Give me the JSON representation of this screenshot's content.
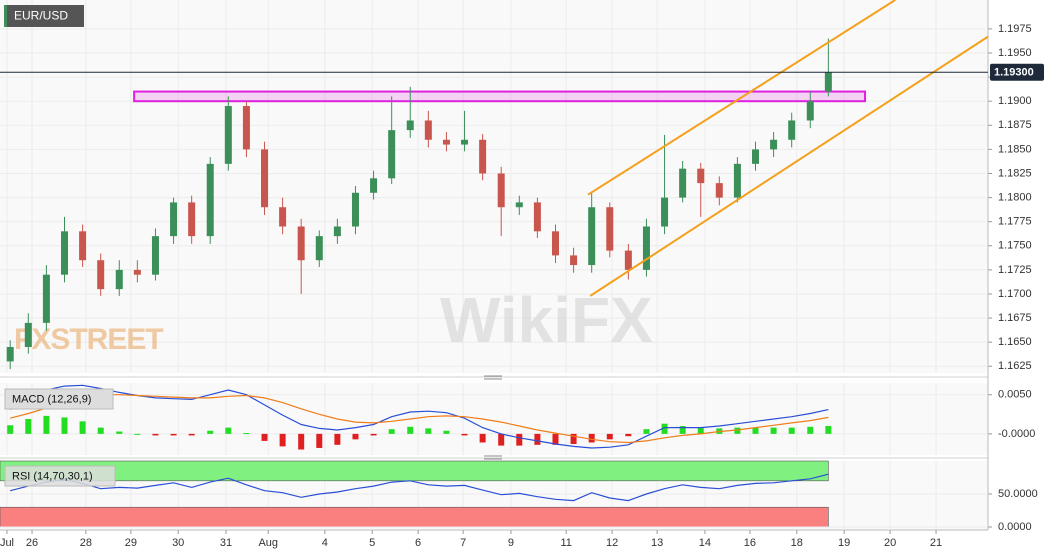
{
  "chart_data": [
    {
      "type": "candlestick",
      "title": "EUR/USD",
      "x": [
        -0.47,
        -0.08,
        0.31,
        0.7,
        1.09,
        1.48,
        1.88,
        2.27,
        2.66,
        3.05,
        3.44,
        3.84,
        4.23,
        4.62,
        5.01,
        5.4,
        5.8,
        6.19,
        6.58,
        6.97,
        7.36,
        7.75,
        8.15,
        8.54,
        8.93,
        9.32,
        9.71,
        10.11,
        10.5,
        10.89,
        11.28,
        11.67,
        12.06,
        12.45,
        12.85,
        13.24,
        13.63,
        14.02,
        14.41,
        14.81,
        15.2,
        15.59,
        15.98,
        16.37,
        16.77,
        17.16
      ],
      "open": [
        1.163,
        1.1645,
        1.167,
        1.172,
        1.1765,
        1.1735,
        1.1705,
        1.1725,
        1.172,
        1.176,
        1.1795,
        1.176,
        1.1835,
        1.1895,
        1.185,
        1.179,
        1.177,
        1.1735,
        1.176,
        1.177,
        1.1805,
        1.182,
        1.187,
        1.188,
        1.186,
        1.1855,
        1.186,
        1.1825,
        1.179,
        1.1795,
        1.1765,
        1.174,
        1.173,
        1.179,
        1.1745,
        1.1725,
        1.177,
        1.18,
        1.183,
        1.1815,
        1.18,
        1.1835,
        1.185,
        1.186,
        1.188,
        1.191
      ],
      "high": [
        1.1652,
        1.168,
        1.173,
        1.178,
        1.1772,
        1.1742,
        1.1735,
        1.1735,
        1.1768,
        1.18,
        1.1802,
        1.1842,
        1.1905,
        1.19,
        1.1858,
        1.18,
        1.1778,
        1.1766,
        1.1778,
        1.1812,
        1.1828,
        1.1905,
        1.1915,
        1.189,
        1.1868,
        1.189,
        1.1866,
        1.1832,
        1.1802,
        1.18,
        1.1772,
        1.1748,
        1.1805,
        1.1795,
        1.1752,
        1.1778,
        1.1865,
        1.1838,
        1.1836,
        1.1822,
        1.1842,
        1.1858,
        1.1868,
        1.1888,
        1.191,
        1.1965
      ],
      "low": [
        1.1622,
        1.1638,
        1.1662,
        1.1712,
        1.1728,
        1.1698,
        1.1698,
        1.1712,
        1.1714,
        1.1752,
        1.1752,
        1.1752,
        1.1828,
        1.1842,
        1.1782,
        1.1762,
        1.17,
        1.1728,
        1.1752,
        1.1762,
        1.1798,
        1.1814,
        1.1862,
        1.1852,
        1.1848,
        1.1848,
        1.1818,
        1.176,
        1.1782,
        1.1758,
        1.1732,
        1.1722,
        1.1722,
        1.1738,
        1.1715,
        1.1718,
        1.1762,
        1.1795,
        1.178,
        1.1792,
        1.1795,
        1.1828,
        1.1842,
        1.1852,
        1.1872,
        1.1905
      ],
      "close": [
        1.1645,
        1.167,
        1.172,
        1.1765,
        1.1735,
        1.1705,
        1.1725,
        1.172,
        1.176,
        1.1795,
        1.176,
        1.1835,
        1.1895,
        1.185,
        1.179,
        1.177,
        1.1735,
        1.176,
        1.177,
        1.1805,
        1.182,
        1.187,
        1.188,
        1.186,
        1.1855,
        1.186,
        1.1825,
        1.179,
        1.1795,
        1.1765,
        1.174,
        1.173,
        1.179,
        1.1745,
        1.1725,
        1.177,
        1.18,
        1.183,
        1.1815,
        1.18,
        1.1835,
        1.185,
        1.186,
        1.188,
        1.19,
        1.193
      ],
      "up_color": "#3d8f5a",
      "down_color": "#c9564d",
      "xlim": [
        -0.69,
        20.6
      ],
      "xticks": [
        {
          "value": -0.54,
          "label": "Jul"
        },
        {
          "value": 0,
          "label": "26"
        },
        {
          "value": 1.16,
          "label": "28"
        },
        {
          "value": 2.13,
          "label": "29"
        },
        {
          "value": 3.15,
          "label": "30"
        },
        {
          "value": 4.18,
          "label": "31"
        },
        {
          "value": 5.09,
          "label": "Aug"
        },
        {
          "value": 6.31,
          "label": "4"
        },
        {
          "value": 7.33,
          "label": "5"
        },
        {
          "value": 8.32,
          "label": "6"
        },
        {
          "value": 9.29,
          "label": "7"
        },
        {
          "value": 10.32,
          "label": "9"
        },
        {
          "value": 11.51,
          "label": "11"
        },
        {
          "value": 12.5,
          "label": "12"
        },
        {
          "value": 13.47,
          "label": "13"
        },
        {
          "value": 14.5,
          "label": "14"
        },
        {
          "value": 15.47,
          "label": "16"
        },
        {
          "value": 16.48,
          "label": "18"
        },
        {
          "value": 17.5,
          "label": "19"
        },
        {
          "value": 18.49,
          "label": "20"
        },
        {
          "value": 19.48,
          "label": "21"
        }
      ],
      "ylim": [
        1.1618,
        1.2005
      ],
      "yticks": [
        {
          "value": 1.1625,
          "label": "1.1625"
        },
        {
          "value": 1.165,
          "label": "1.1650"
        },
        {
          "value": 1.1675,
          "label": "1.1675"
        },
        {
          "value": 1.17,
          "label": "1.1700"
        },
        {
          "value": 1.1725,
          "label": "1.1725"
        },
        {
          "value": 1.175,
          "label": "1.1750"
        },
        {
          "value": 1.1775,
          "label": "1.1775"
        },
        {
          "value": 1.18,
          "label": "1.1800"
        },
        {
          "value": 1.1825,
          "label": "1.1825"
        },
        {
          "value": 1.185,
          "label": "1.1850"
        },
        {
          "value": 1.1875,
          "label": "1.1875"
        },
        {
          "value": 1.19,
          "label": "1.1900"
        },
        {
          "value": 1.1925,
          "label": "1.1925"
        },
        {
          "value": 1.195,
          "label": "1.1950"
        },
        {
          "value": 1.1975,
          "label": "1.1975"
        }
      ],
      "current_price": {
        "value": 1.193,
        "label": "1.19300"
      },
      "zone": {
        "x": [
          2.2,
          17.95
        ],
        "y": [
          1.19,
          1.191
        ],
        "color": "#e020e0"
      },
      "channel": {
        "color": "#f5a01a",
        "lines": [
          {
            "x": [
              11.98,
              18.6
            ],
            "y": [
              1.1803,
              1.2005
            ]
          },
          {
            "x": [
              12.03,
              20.6
            ],
            "y": [
              1.1698,
              1.1967
            ]
          }
        ]
      },
      "watermarks": [
        "FXSTREET",
        "WikiFX"
      ]
    },
    {
      "type": "macd",
      "label": "MACD (12,26,9)",
      "lines": [
        {
          "color": "#2a4fd6",
          "values": [
            0.0031,
            0.0045,
            0.0056,
            0.0061,
            0.0062,
            0.0058,
            0.0053,
            0.0049,
            0.0046,
            0.0045,
            0.0044,
            0.005,
            0.0056,
            0.005,
            0.0037,
            0.0024,
            0.0012,
            0.0007,
            0.0005,
            0.0008,
            0.0012,
            0.0022,
            0.0028,
            0.0029,
            0.0027,
            0.002,
            0.0008,
            0.0,
            -0.0005,
            -0.0009,
            -0.0013,
            -0.0016,
            -0.0018,
            -0.0017,
            -0.0014,
            -0.0003,
            0.0008,
            0.0008,
            0.0008,
            0.001,
            0.0013,
            0.0016,
            0.0019,
            0.0022,
            0.0026,
            0.0031
          ]
        },
        {
          "color": "#ef7d1a",
          "values": [
            0.002,
            0.0026,
            0.0033,
            0.004,
            0.0046,
            0.005,
            0.005,
            0.0049,
            0.0048,
            0.0047,
            0.0046,
            0.0046,
            0.0048,
            0.0049,
            0.0046,
            0.004,
            0.0032,
            0.0025,
            0.0019,
            0.0015,
            0.0014,
            0.0016,
            0.0019,
            0.0022,
            0.0023,
            0.0022,
            0.0019,
            0.0015,
            0.001,
            0.0005,
            0.0001,
            -0.0003,
            -0.0007,
            -0.001,
            -0.0011,
            -0.0009,
            -0.0005,
            -0.0002,
            0.0,
            0.0003,
            0.0005,
            0.0008,
            0.0011,
            0.0014,
            0.0017,
            0.0021
          ]
        }
      ],
      "histogram": {
        "up_color": "#22dd22",
        "down_color": "#e02020",
        "values": [
          0.0011,
          0.0019,
          0.0023,
          0.0021,
          0.0016,
          0.0008,
          0.0003,
          0.0,
          -0.0002,
          -0.0002,
          -0.0002,
          0.0004,
          0.0008,
          0.0001,
          -0.0009,
          -0.0016,
          -0.002,
          -0.0018,
          -0.0014,
          -0.0007,
          -0.0002,
          0.0006,
          0.0009,
          0.0007,
          0.0004,
          -0.0002,
          -0.0011,
          -0.0015,
          -0.0015,
          -0.0014,
          -0.0014,
          -0.0013,
          -0.0011,
          -0.0007,
          -0.0003,
          0.0006,
          0.0013,
          0.001,
          0.0008,
          0.0007,
          0.0008,
          0.0008,
          0.0008,
          0.0008,
          0.0009,
          0.001
        ]
      },
      "ylim": [
        -0.0027,
        0.0065
      ],
      "yticks": [
        {
          "value": 0.005,
          "label": "0.0050"
        },
        {
          "value": 0,
          "label": "-0.0000"
        }
      ]
    },
    {
      "type": "rsi",
      "label": "RSI (14,70,30,1)",
      "color": "#2a4fd6",
      "values": [
        55,
        62,
        68,
        72,
        66,
        58,
        60,
        59,
        63,
        67,
        60,
        68,
        74,
        64,
        55,
        52,
        45,
        50,
        53,
        58,
        62,
        68,
        70,
        64,
        62,
        63,
        56,
        49,
        51,
        46,
        42,
        40,
        52,
        44,
        40,
        50,
        58,
        64,
        60,
        58,
        63,
        66,
        67,
        70,
        73,
        80
      ],
      "bands": [
        {
          "range": [
            70,
            100
          ],
          "color": "#80f080"
        },
        {
          "range": [
            0,
            30
          ],
          "color": "#fa8080"
        }
      ],
      "ylim": [
        -4.5,
        100
      ],
      "yticks": [
        {
          "value": 50,
          "label": "50.0000"
        },
        {
          "value": 0,
          "label": "0.0000"
        }
      ]
    }
  ]
}
